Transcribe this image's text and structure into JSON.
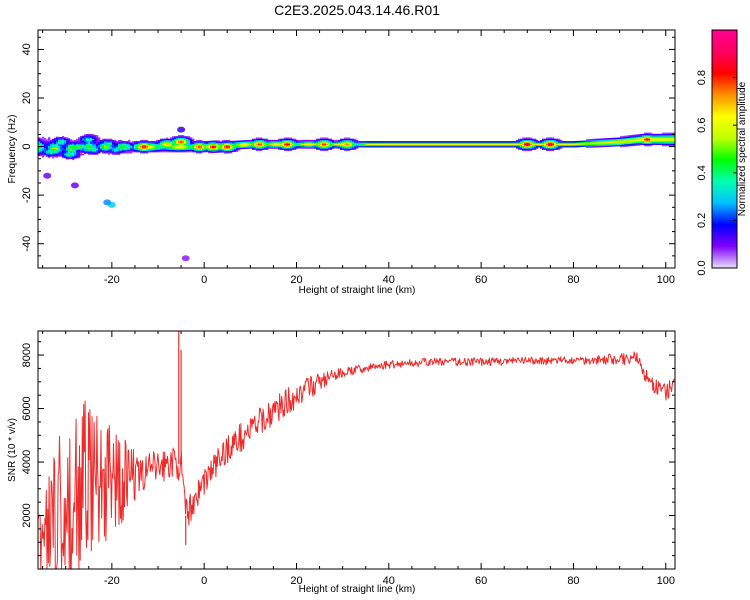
{
  "title": "C2E3.2025.043.14.46.R01",
  "chart_data": [
    {
      "type": "heatmap",
      "xlabel": "Height of straight line (km)",
      "ylabel": "Frequency (Hz)",
      "xlim": [
        -36,
        102
      ],
      "ylim": [
        -50,
        48
      ],
      "xticks": [
        -20,
        0,
        20,
        40,
        60,
        80,
        100
      ],
      "yticks": [
        -40,
        -20,
        0,
        20,
        40
      ],
      "colorbar": {
        "label": "Normalized spectral amplitude",
        "ticks": [
          0.0,
          0.2,
          0.4,
          0.6,
          0.8
        ],
        "tick_labels": [
          "0.0",
          "0.2",
          "0.4",
          "0.6",
          "0.8"
        ],
        "range": [
          0,
          1
        ],
        "colors": [
          "#e8e0f8",
          "#8000ff",
          "#0000ff",
          "#00c0ff",
          "#00ffb0",
          "#00ff00",
          "#c0ff00",
          "#ffff00",
          "#ff9000",
          "#ff0000",
          "#ff0060",
          "#ff0090"
        ]
      },
      "band_center": [
        [
          -36,
          0
        ],
        [
          -30,
          -1
        ],
        [
          -25,
          0
        ],
        [
          -20,
          0
        ],
        [
          -10,
          0
        ],
        [
          0,
          0
        ],
        [
          10,
          1
        ],
        [
          20,
          1
        ],
        [
          40,
          1
        ],
        [
          60,
          1
        ],
        [
          80,
          1
        ],
        [
          90,
          2
        ],
        [
          95,
          3
        ],
        [
          102,
          3
        ]
      ],
      "band_halfwidth": [
        [
          -36,
          3
        ],
        [
          -20,
          2
        ],
        [
          0,
          1.5
        ],
        [
          40,
          1
        ],
        [
          80,
          1
        ],
        [
          90,
          1.5
        ],
        [
          102,
          2
        ]
      ],
      "blobs": [
        {
          "x": -33,
          "y": -2,
          "amp": 0.4
        },
        {
          "x": -31,
          "y": 2,
          "amp": 0.35
        },
        {
          "x": -29,
          "y": -3,
          "amp": 0.4
        },
        {
          "x": -27,
          "y": 0,
          "amp": 0.45
        },
        {
          "x": -25,
          "y": 3,
          "amp": 0.35
        },
        {
          "x": -24,
          "y": -1,
          "amp": 0.4
        },
        {
          "x": -21,
          "y": 1,
          "amp": 0.4
        },
        {
          "x": -19,
          "y": -1,
          "amp": 0.35
        },
        {
          "x": -17,
          "y": 0,
          "amp": 0.45
        },
        {
          "x": -13,
          "y": 0,
          "amp": 0.85
        },
        {
          "x": -8,
          "y": 1,
          "amp": 0.7
        },
        {
          "x": -5,
          "y": 2,
          "amp": 0.8
        },
        {
          "x": -1,
          "y": 0,
          "amp": 0.8
        },
        {
          "x": 2,
          "y": 0,
          "amp": 0.85
        },
        {
          "x": 5,
          "y": 0,
          "amp": 0.85
        },
        {
          "x": 12,
          "y": 1,
          "amp": 0.8
        },
        {
          "x": 18,
          "y": 1,
          "amp": 0.85
        },
        {
          "x": 26,
          "y": 1,
          "amp": 0.8
        },
        {
          "x": 31,
          "y": 1,
          "amp": 0.75
        },
        {
          "x": 70,
          "y": 1,
          "amp": 0.9
        },
        {
          "x": 75,
          "y": 1,
          "amp": 0.9
        },
        {
          "x": 96,
          "y": 3,
          "amp": 0.85
        }
      ],
      "outliers": [
        {
          "x": -20,
          "y": -24,
          "amp": 0.3
        },
        {
          "x": -21,
          "y": -23,
          "amp": 0.25
        },
        {
          "x": -34,
          "y": -12,
          "amp": 0.1
        },
        {
          "x": -28,
          "y": -16,
          "amp": 0.1
        },
        {
          "x": -4,
          "y": -46,
          "amp": 0.08
        },
        {
          "x": -5,
          "y": 7,
          "amp": 0.15
        }
      ]
    },
    {
      "type": "line",
      "xlabel": "Height of straight line (km)",
      "ylabel": "SNR (10 * v/v)",
      "xlim": [
        -36,
        102
      ],
      "ylim": [
        0,
        8900
      ],
      "xticks": [
        -20,
        0,
        20,
        40,
        60,
        80,
        100
      ],
      "yticks": [
        2000,
        4000,
        6000,
        8000
      ],
      "color": "#ee2b2b",
      "envelope": [
        [
          -36,
          700
        ],
        [
          -33,
          1500
        ],
        [
          -30,
          2500
        ],
        [
          -25,
          3200
        ],
        [
          -20,
          3300
        ],
        [
          -15,
          3500
        ],
        [
          -10,
          3800
        ],
        [
          -7,
          4000
        ],
        [
          -5,
          3900
        ],
        [
          -4,
          2000
        ],
        [
          -3,
          2300
        ],
        [
          0,
          3300
        ],
        [
          5,
          4500
        ],
        [
          10,
          5200
        ],
        [
          15,
          5900
        ],
        [
          20,
          6500
        ],
        [
          25,
          7000
        ],
        [
          30,
          7350
        ],
        [
          35,
          7500
        ],
        [
          40,
          7650
        ],
        [
          50,
          7750
        ],
        [
          60,
          7750
        ],
        [
          70,
          7780
        ],
        [
          80,
          7800
        ],
        [
          90,
          7850
        ],
        [
          94,
          7900
        ],
        [
          95,
          7400
        ],
        [
          97,
          6900
        ],
        [
          100,
          6600
        ],
        [
          102,
          6900
        ]
      ],
      "noise": [
        [
          -36,
          1000
        ],
        [
          -30,
          2400
        ],
        [
          -25,
          2300
        ],
        [
          -20,
          1700
        ],
        [
          -15,
          700
        ],
        [
          -10,
          650
        ],
        [
          -5,
          600
        ],
        [
          0,
          550
        ],
        [
          10,
          550
        ],
        [
          20,
          500
        ],
        [
          25,
          350
        ],
        [
          30,
          180
        ],
        [
          40,
          150
        ],
        [
          80,
          150
        ],
        [
          95,
          250
        ],
        [
          102,
          350
        ]
      ],
      "spikes": [
        {
          "x": -5.5,
          "y": 8900
        },
        {
          "x": -5.0,
          "y": 8200
        },
        {
          "x": -4.0,
          "y": 900
        }
      ]
    }
  ]
}
